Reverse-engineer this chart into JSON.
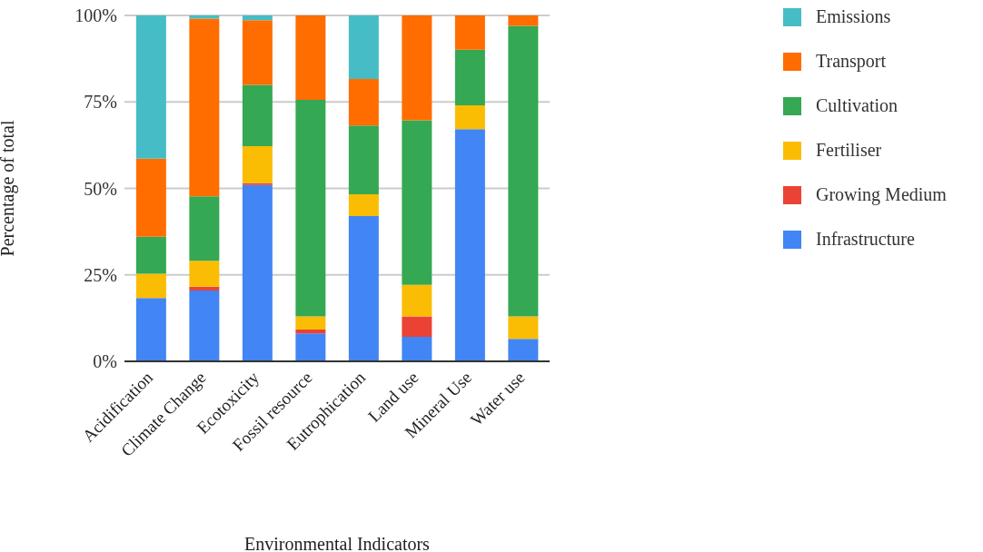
{
  "chart_data": {
    "type": "bar",
    "stacked": true,
    "xlabel": "Environmental Indicators",
    "ylabel": "Percentage of total",
    "categories": [
      "Acidification",
      "Climate Change",
      "Ecotoxicity",
      "Fossil resource",
      "Eutrophication",
      "Land use",
      "Mineral Use",
      "Water use"
    ],
    "series": [
      {
        "name": "Infrastructure",
        "color": "#4285f4",
        "values": [
          18.3,
          20.5,
          51.0,
          8.1,
          42.0,
          7.1,
          67.1,
          6.5
        ]
      },
      {
        "name": "Growing Medium",
        "color": "#ea4335",
        "values": [
          0,
          1.1,
          0.5,
          1.1,
          0,
          5.9,
          0,
          0
        ]
      },
      {
        "name": "Fertiliser",
        "color": "#fbbc04",
        "values": [
          7.0,
          7.5,
          10.7,
          3.8,
          6.3,
          9.1,
          6.9,
          6.5
        ]
      },
      {
        "name": "Cultivation",
        "color": "#34a853",
        "values": [
          10.7,
          18.6,
          17.7,
          62.6,
          19.9,
          47.6,
          16.1,
          84.0
        ]
      },
      {
        "name": "Transport",
        "color": "#ff6d01",
        "values": [
          22.6,
          51.4,
          18.7,
          24.4,
          13.4,
          30.3,
          9.9,
          3.0
        ]
      },
      {
        "name": "Emissions",
        "color": "#46bdc6",
        "values": [
          41.4,
          0.9,
          1.4,
          0,
          18.4,
          0,
          0,
          0
        ]
      }
    ],
    "ylim": [
      0,
      100
    ],
    "yticks": [
      {
        "value": 0,
        "label": "0%"
      },
      {
        "value": 25,
        "label": "25%"
      },
      {
        "value": 50,
        "label": "50%"
      },
      {
        "value": 75,
        "label": "75%"
      },
      {
        "value": 100,
        "label": "100%"
      }
    ],
    "grid": "y",
    "legend": "right"
  }
}
